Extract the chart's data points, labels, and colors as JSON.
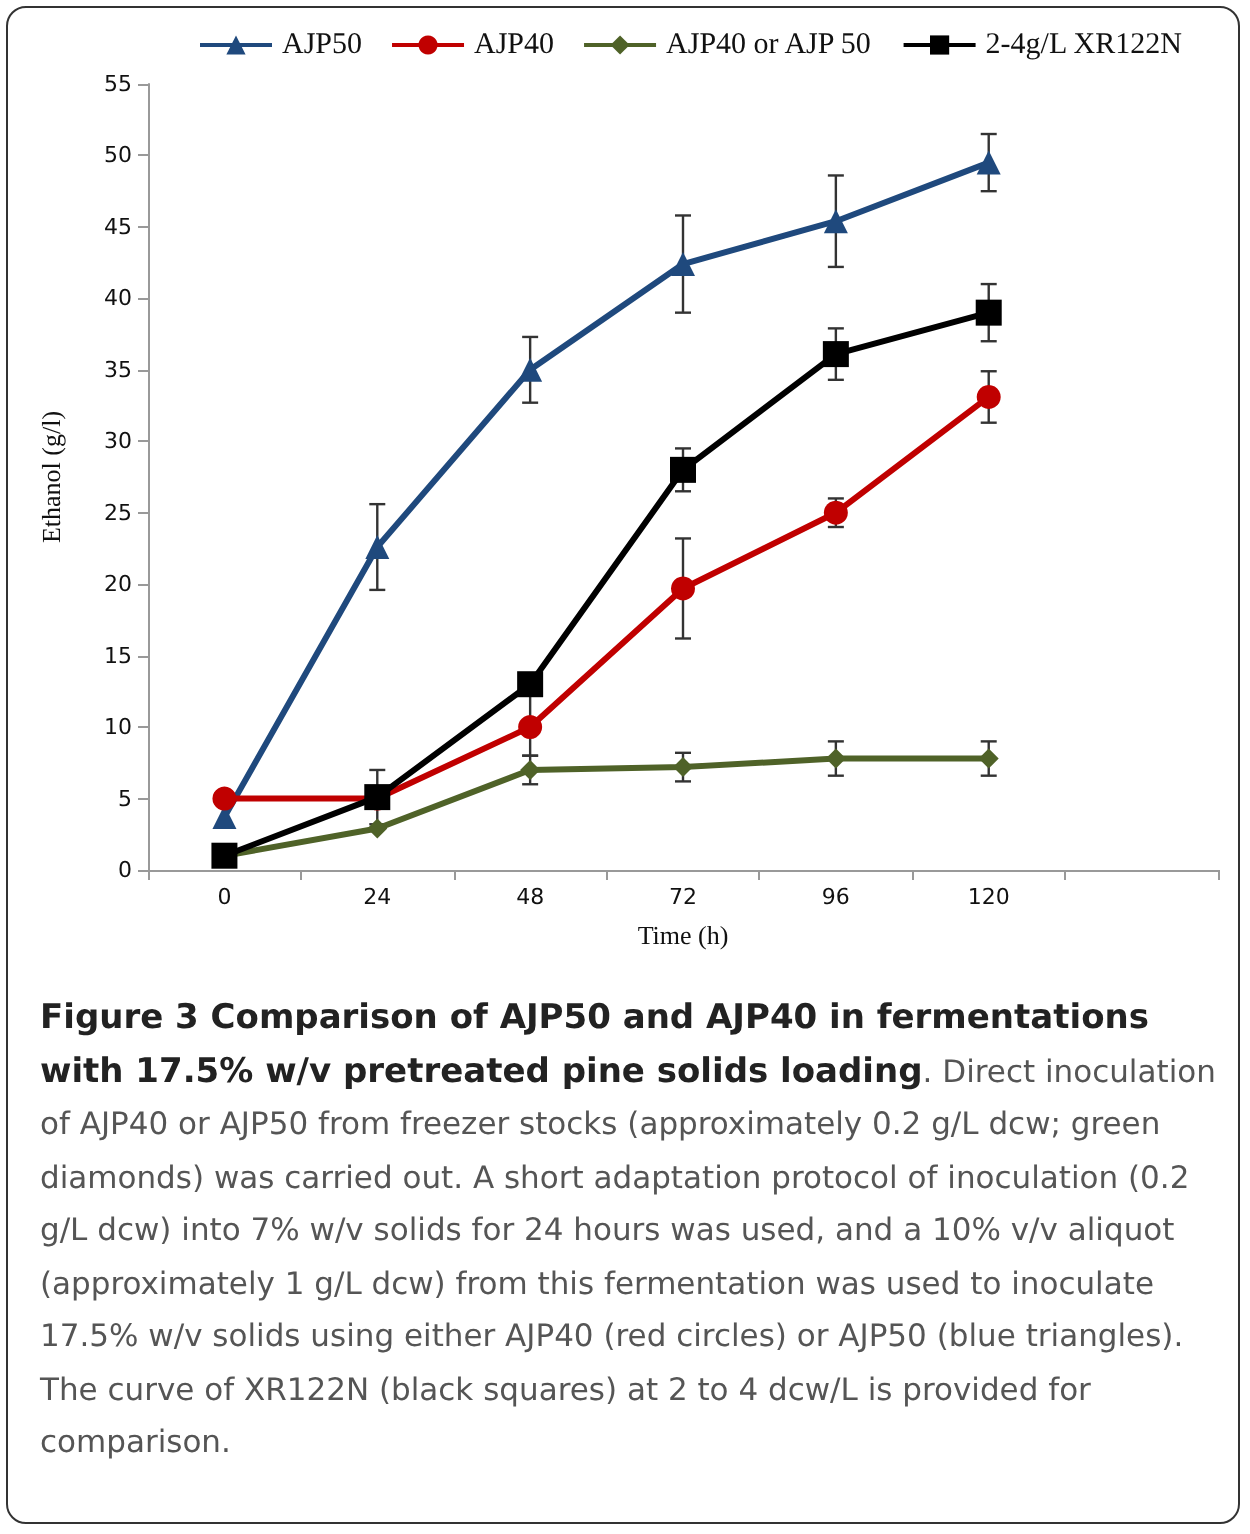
{
  "chart_data": {
    "type": "line",
    "title": "Figure 3 Comparison of AJP50 and AJP40 in fermentations with 17.5% w/v pretreated pine solids loading",
    "annotations": [
      ". Direct inoculation of AJP40 or AJP50 from freezer stocks (approximately 0.2 g/L dcw; green diamonds) was carried out. A short adaptation protocol of inoculation (0.2 g/L dcw) into 7% w/v solids for 24 hours was used, and a 10% v/v aliquot (approximately 1 g/L dcw) from this fermentation was used to inoculate 17.5% w/v solids using either AJP40 (red circles) or AJP50 (blue triangles). The curve of XR122N (black squares) at 2 to 4 dcw/L is provided for comparison."
    ],
    "xlabel": "Time (h)",
    "ylabel": "Ethanol (g/l)",
    "categories": [
      "0",
      "24",
      "48",
      "72",
      "96",
      "120",
      null
    ],
    "ylim": [
      0,
      55
    ],
    "yticks": [
      0,
      5,
      10,
      15,
      20,
      25,
      30,
      35,
      40,
      45,
      50,
      55
    ],
    "grid": false,
    "legend": "top",
    "line_style": "solid",
    "series": [
      {
        "name": "AJP50",
        "color": "#1f497d",
        "marker": "triangle",
        "values": [
          3.7,
          22.6,
          35.0,
          42.4,
          45.4,
          49.5,
          null
        ],
        "errors": [
          null,
          3,
          2.3,
          3.4,
          3.2,
          2,
          null
        ]
      },
      {
        "name": "AJP40",
        "color": "#c00000",
        "marker": "circle",
        "values": [
          5,
          5,
          10,
          19.7,
          25.0,
          33.1,
          null
        ],
        "errors": [
          null,
          null,
          null,
          3.5,
          1,
          1.8,
          null
        ]
      },
      {
        "name": "AJP40 or AJP 50",
        "color": "#4f6228",
        "marker": "diamond",
        "values": [
          1,
          2.9,
          7.0,
          7.2,
          7.8,
          7.8,
          null
        ],
        "errors": [
          null,
          null,
          1,
          1,
          1.2,
          1.2,
          null
        ]
      },
      {
        "name": "2-4g/L XR122N",
        "color": "#000000",
        "marker": "square",
        "values": [
          1,
          5.1,
          13,
          28.0,
          36.1,
          39.0,
          null
        ],
        "errors": [
          null,
          1.9,
          [
            8,
            13
          ],
          1.5,
          1.8,
          2,
          null
        ]
      }
    ]
  }
}
